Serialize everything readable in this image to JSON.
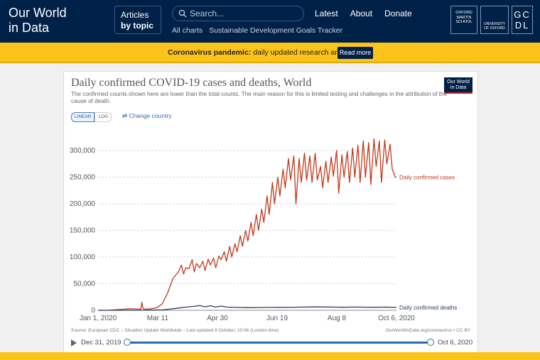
{
  "header": {
    "logo_line1": "Our World",
    "logo_line2": "in Data",
    "articles_label": "Articles",
    "articles_sub": "by topic",
    "search_placeholder": "Search...",
    "sublinks": [
      "All charts",
      "Sustainable Development Goals Tracker"
    ],
    "nav": [
      "Latest",
      "About",
      "Donate"
    ],
    "partner_martin": "OXFORD MARTIN SCHOOL",
    "partner_oxford": "UNIVERSITY OF OXFORD",
    "partner_gcdl": "GC DL"
  },
  "banner": {
    "bold": "Coronavirus pandemic:",
    "text": " daily updated research and data.",
    "button": "Read more"
  },
  "chart_card": {
    "title": "Daily confirmed COVID-19 cases and deaths, World",
    "subtitle": "The confirmed counts shown here are lower than the total counts. The main reason for this is limited testing and challenges in the attribution of the cause of death.",
    "badge_line1": "Our World",
    "badge_line2": "in Data",
    "scale_linear": "LINEAR",
    "scale_log": "LOG",
    "change_country": "Change country",
    "source": "Source: European CDC – Situation Update Worldwide – Last updated 6 October, 10:06 (London time)",
    "license": "OurWorldInData.org/coronavirus • CC BY",
    "timeline_start": "Dec 31, 2019",
    "timeline_end": "Oct 6, 2020"
  },
  "colors": {
    "cases": "#c0391b",
    "deaths": "#2c3e5c",
    "header_bg": "#002147",
    "banner_bg": "#fcc31a"
  },
  "chart_data": {
    "type": "line",
    "title": "Daily confirmed COVID-19 cases and deaths, World",
    "xlabel": "",
    "ylabel": "",
    "ylim": [
      0,
      320000
    ],
    "y_ticks": [
      0,
      50000,
      100000,
      150000,
      200000,
      250000,
      300000
    ],
    "y_tick_labels": [
      "0",
      "50,000",
      "100,000",
      "150,000",
      "200,000",
      "250,000",
      "300,000"
    ],
    "x_tick_labels": [
      "Jan 1, 2020",
      "Mar 11",
      "Apr 30",
      "Jun 19",
      "Aug 8",
      "Oct 6, 2020"
    ],
    "grid": true,
    "legend_placement": "line-end labels (right)",
    "series": [
      {
        "name": "Daily confirmed cases",
        "x_days": [
          0,
          10,
          20,
          30,
          40,
          41,
          42,
          43,
          45,
          50,
          55,
          60,
          65,
          70,
          75,
          78,
          80,
          82,
          85,
          88,
          90,
          92,
          95,
          98,
          100,
          103,
          105,
          108,
          110,
          113,
          115,
          118,
          120,
          123,
          125,
          128,
          130,
          133,
          135,
          138,
          140,
          143,
          145,
          148,
          150,
          153,
          155,
          158,
          160,
          163,
          165,
          168,
          170,
          173,
          175,
          178,
          180,
          183,
          185,
          188,
          190,
          193,
          195,
          198,
          200,
          203,
          205,
          208,
          210,
          213,
          215,
          218,
          220,
          223,
          225,
          228,
          230,
          233,
          235,
          238,
          240,
          243,
          245,
          248,
          250,
          253,
          255,
          258,
          260,
          263,
          265,
          268,
          270,
          273,
          275,
          278,
          279
        ],
        "values": [
          0,
          100,
          1500,
          3000,
          2000,
          15000,
          4000,
          2500,
          2000,
          3000,
          5000,
          12000,
          32000,
          60000,
          72000,
          85000,
          68000,
          80000,
          78000,
          95000,
          72000,
          88000,
          80000,
          92000,
          75000,
          96000,
          85000,
          98000,
          80000,
          102000,
          95000,
          110000,
          92000,
          120000,
          100000,
          125000,
          110000,
          140000,
          120000,
          150000,
          130000,
          165000,
          140000,
          180000,
          150000,
          190000,
          165000,
          215000,
          180000,
          240000,
          200000,
          250000,
          215000,
          265000,
          230000,
          285000,
          245000,
          290000,
          200000,
          285000,
          240000,
          295000,
          245000,
          290000,
          240000,
          295000,
          245000,
          270000,
          230000,
          280000,
          240000,
          288000,
          252000,
          300000,
          220000,
          292000,
          250000,
          298000,
          240000,
          305000,
          250000,
          310000,
          240000,
          318000,
          250000,
          315000,
          236000,
          322000,
          270000,
          318000,
          240000,
          320000,
          275000,
          312000,
          265000,
          250000,
          250000
        ]
      },
      {
        "name": "Daily confirmed deaths",
        "x_days": [
          0,
          20,
          40,
          60,
          70,
          80,
          90,
          95,
          100,
          105,
          110,
          115,
          120,
          130,
          140,
          150,
          160,
          170,
          180,
          190,
          200,
          210,
          220,
          230,
          240,
          250,
          260,
          270,
          279
        ],
        "values": [
          0,
          50,
          100,
          800,
          3000,
          5500,
          7500,
          9000,
          6500,
          8500,
          6000,
          8000,
          6000,
          5500,
          5000,
          5200,
          5400,
          5600,
          5500,
          6000,
          6200,
          6300,
          6000,
          5800,
          6100,
          5900,
          5700,
          6000,
          5500
        ]
      }
    ]
  }
}
